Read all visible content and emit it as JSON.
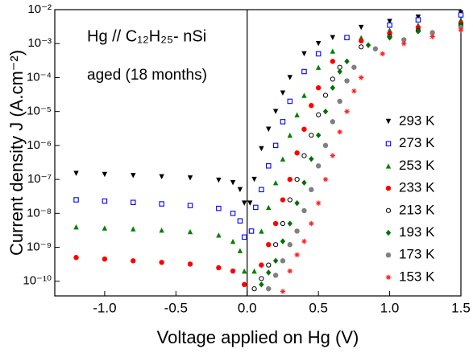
{
  "chart_data": {
    "type": "scatter",
    "annotations": [
      "Hg // C₁₂H₂₅- nSi",
      "aged (18 months)"
    ],
    "xlabel": "Voltage applied on Hg  (V)",
    "ylabel": "Current density J (A.cm⁻²)",
    "xlim": [
      -1.35,
      1.5
    ],
    "xticks": [
      {
        "value": -1,
        "label": "-1.0"
      },
      {
        "value": -0.5,
        "label": "-0.5"
      },
      {
        "value": 0,
        "label": "0.0"
      },
      {
        "value": 0.5,
        "label": "0.5"
      },
      {
        "value": 1,
        "label": "1.0"
      },
      {
        "value": 1.5,
        "label": "1.5"
      }
    ],
    "ylim": [
      3.7e-11,
      0.01
    ],
    "yscale": "log",
    "yticks": [
      {
        "value": 0.01,
        "label": "10⁻²"
      },
      {
        "value": 0.001,
        "label": "10⁻³"
      },
      {
        "value": 0.0001,
        "label": "10⁻⁴"
      },
      {
        "value": 1e-05,
        "label": "10⁻⁵"
      },
      {
        "value": 1e-06,
        "label": "10⁻⁶"
      },
      {
        "value": 1e-07,
        "label": "10⁻⁷"
      },
      {
        "value": 1e-08,
        "label": "10⁻⁸"
      },
      {
        "value": 1e-09,
        "label": "10⁻⁹"
      },
      {
        "value": 1e-10,
        "label": "10⁻¹⁰"
      }
    ],
    "legend": "right",
    "series": [
      {
        "name": "293 K",
        "color": "#000000",
        "marker": "triangle-down",
        "x": [
          -1.2,
          -1.0,
          -0.8,
          -0.6,
          -0.4,
          -0.2,
          -0.1,
          -0.05,
          -0.02,
          0.02,
          0.05,
          0.1,
          0.15,
          0.2,
          0.25,
          0.3,
          0.4,
          0.5,
          0.6,
          0.8,
          1.0,
          1.2,
          1.5
        ],
        "values": [
          1.5e-07,
          1.4e-07,
          1.3e-07,
          1.2e-07,
          1.1e-07,
          9.5e-08,
          8e-08,
          5e-08,
          2e-08,
          2e-08,
          1e-07,
          8e-07,
          3e-06,
          1e-05,
          3.5e-05,
          0.0001,
          0.0005,
          0.001,
          0.0015,
          0.003,
          0.0045,
          0.006,
          0.008
        ]
      },
      {
        "name": "273 K",
        "color": "#0000ff",
        "marker": "square-open",
        "x": [
          -1.2,
          -1.0,
          -0.8,
          -0.6,
          -0.4,
          -0.2,
          -0.1,
          -0.05,
          -0.02,
          0.03,
          0.06,
          0.1,
          0.15,
          0.2,
          0.25,
          0.3,
          0.4,
          0.5,
          0.7,
          1.0,
          1.2,
          1.5
        ],
        "values": [
          2.5e-08,
          2.3e-08,
          2.1e-08,
          1.9e-08,
          1.7e-08,
          1.4e-08,
          1e-08,
          6e-09,
          2e-09,
          3e-09,
          1.5e-08,
          5e-08,
          2.5e-07,
          1e-06,
          5e-06,
          2e-05,
          0.00015,
          0.0005,
          0.0015,
          0.0035,
          0.005,
          0.007
        ]
      },
      {
        "name": "253 K",
        "color": "#008000",
        "marker": "triangle",
        "x": [
          -1.2,
          -1.0,
          -0.8,
          -0.6,
          -0.4,
          -0.2,
          -0.1,
          -0.05,
          -0.02,
          0.05,
          0.1,
          0.15,
          0.2,
          0.25,
          0.3,
          0.35,
          0.4,
          0.5,
          0.6,
          0.8,
          1.0,
          1.2,
          1.5
        ],
        "values": [
          4e-09,
          3.7e-09,
          3.5e-09,
          3.2e-09,
          2.9e-09,
          2.3e-09,
          1.5e-09,
          8e-10,
          2e-10,
          2e-10,
          3e-09,
          1.5e-08,
          8e-08,
          4e-07,
          2e-06,
          8e-06,
          3e-05,
          0.0002,
          0.0006,
          0.0015,
          0.0025,
          0.0035,
          0.005
        ]
      },
      {
        "name": "233 K",
        "color": "#ff0000",
        "marker": "circle",
        "x": [
          -1.2,
          -1.0,
          -0.8,
          -0.6,
          -0.4,
          -0.2,
          -0.1,
          -0.02,
          0.1,
          0.15,
          0.2,
          0.25,
          0.3,
          0.35,
          0.4,
          0.45,
          0.5,
          0.6,
          0.8,
          1.0,
          1.2,
          1.5
        ],
        "values": [
          5e-10,
          4.5e-10,
          4e-10,
          3.6e-10,
          3.2e-10,
          2.5e-10,
          2e-10,
          8e-11,
          3e-10,
          1.2e-09,
          5e-09,
          2.5e-08,
          1e-07,
          6e-07,
          3e-06,
          1.5e-05,
          5e-05,
          0.0003,
          0.0012,
          0.002,
          0.003,
          0.004
        ]
      },
      {
        "name": "213 K",
        "color": "#000000",
        "marker": "circle-open",
        "x": [
          0.05,
          0.1,
          0.15,
          0.2,
          0.25,
          0.3,
          0.35,
          0.4,
          0.45,
          0.5,
          0.55,
          0.6,
          0.65,
          0.8,
          1.0,
          1.2,
          1.5
        ],
        "values": [
          6e-11,
          1.2e-10,
          3e-10,
          1.2e-09,
          5e-09,
          2.5e-08,
          1e-07,
          5e-07,
          2e-06,
          8e-06,
          3e-05,
          9e-05,
          0.0002,
          0.0008,
          0.0016,
          0.0024,
          0.0035
        ]
      },
      {
        "name": "193 K",
        "color": "#007000",
        "marker": "diamond",
        "x": [
          0.1,
          0.15,
          0.2,
          0.25,
          0.3,
          0.35,
          0.4,
          0.45,
          0.5,
          0.55,
          0.6,
          0.65,
          0.7,
          0.85,
          1.0,
          1.2,
          1.5
        ],
        "values": [
          8e-11,
          1.8e-10,
          4e-10,
          1.5e-09,
          5e-09,
          2e-08,
          8e-08,
          4e-07,
          2e-06,
          1e-05,
          5e-05,
          0.00015,
          0.0003,
          0.0009,
          0.0015,
          0.0023,
          0.0035
        ]
      },
      {
        "name": "173 K",
        "color": "#808080",
        "marker": "circle",
        "x": [
          0.15,
          0.2,
          0.25,
          0.3,
          0.35,
          0.4,
          0.45,
          0.5,
          0.55,
          0.6,
          0.65,
          0.7,
          0.75,
          0.9,
          1.1,
          1.3,
          1.5
        ],
        "values": [
          6e-11,
          1.5e-10,
          4e-10,
          1.2e-09,
          3e-09,
          1.2e-08,
          5e-08,
          2.5e-07,
          1e-06,
          5e-06,
          2e-05,
          8e-05,
          0.0002,
          0.0007,
          0.0013,
          0.0021,
          0.003
        ]
      },
      {
        "name": "153 K",
        "color": "#ff2020",
        "marker": "star",
        "x": [
          0.25,
          0.3,
          0.35,
          0.4,
          0.45,
          0.5,
          0.55,
          0.6,
          0.65,
          0.7,
          0.75,
          0.8,
          0.95,
          1.1,
          1.3,
          1.5
        ],
        "values": [
          5e-11,
          2e-10,
          6e-10,
          1.5e-09,
          5e-09,
          2e-08,
          1e-07,
          5e-07,
          2.5e-06,
          1e-05,
          4e-05,
          0.0001,
          0.0005,
          0.001,
          0.0016,
          0.0025
        ]
      }
    ]
  }
}
